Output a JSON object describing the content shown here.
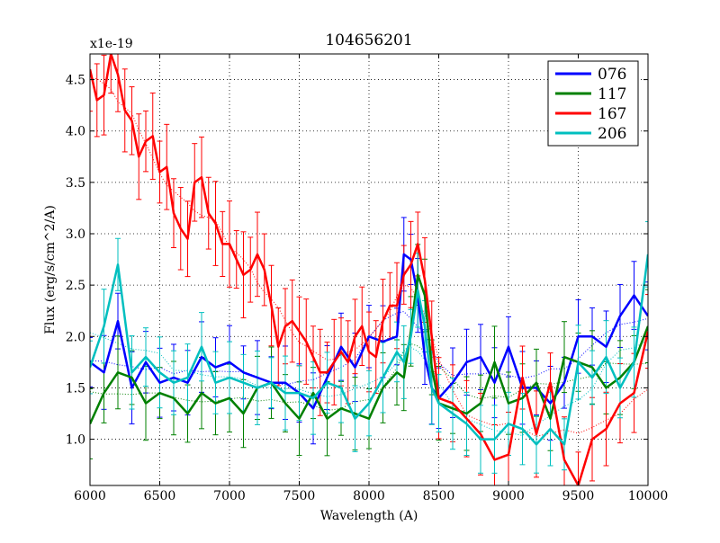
{
  "chart_data": {
    "type": "line",
    "title": "104656201",
    "xlabel": "Wavelength (A)",
    "ylabel": "Flux (erg/s/cm^2/A)",
    "y_scale_label": "x1e-19",
    "xlim": [
      6000,
      10000
    ],
    "ylim": [
      0.55,
      4.75
    ],
    "xticks": [
      6000,
      6500,
      7000,
      7500,
      8000,
      8500,
      9000,
      9500,
      10000
    ],
    "yticks": [
      1.0,
      1.5,
      2.0,
      2.5,
      3.0,
      3.5,
      4.0,
      4.5
    ],
    "ytick_labels": [
      "1.0",
      "1.5",
      "2.0",
      "2.5",
      "3.0",
      "3.5",
      "4.0",
      "4.5"
    ],
    "grid": true,
    "legend_position": "top-right",
    "series": [
      {
        "name": "076",
        "color": "#0000ff",
        "x": [
          6000,
          6100,
          6200,
          6300,
          6400,
          6500,
          6600,
          6700,
          6800,
          6900,
          7000,
          7100,
          7200,
          7300,
          7400,
          7500,
          7600,
          7700,
          7800,
          7900,
          8000,
          8100,
          8200,
          8250,
          8300,
          8350,
          8400,
          8450,
          8500,
          8600,
          8700,
          8800,
          8900,
          9000,
          9100,
          9200,
          9300,
          9400,
          9500,
          9600,
          9700,
          9800,
          9900,
          10000
        ],
        "y": [
          1.75,
          1.65,
          2.15,
          1.5,
          1.75,
          1.55,
          1.6,
          1.55,
          1.8,
          1.7,
          1.75,
          1.65,
          1.6,
          1.55,
          1.55,
          1.45,
          1.3,
          1.6,
          1.9,
          1.7,
          2.0,
          1.95,
          2.0,
          2.8,
          2.75,
          2.4,
          1.8,
          1.5,
          1.4,
          1.55,
          1.75,
          1.8,
          1.55,
          1.9,
          1.5,
          1.5,
          1.35,
          1.55,
          2.0,
          2.0,
          1.9,
          2.2,
          2.4,
          2.2
        ],
        "err": 0.3
      },
      {
        "name": "117",
        "color": "#008000",
        "x": [
          6000,
          6100,
          6200,
          6300,
          6400,
          6500,
          6600,
          6700,
          6800,
          6900,
          7000,
          7100,
          7200,
          7300,
          7400,
          7500,
          7600,
          7700,
          7800,
          7900,
          8000,
          8100,
          8200,
          8250,
          8300,
          8350,
          8400,
          8450,
          8500,
          8600,
          8700,
          8800,
          8900,
          9000,
          9100,
          9200,
          9300,
          9400,
          9500,
          9600,
          9700,
          9800,
          9900,
          10000
        ],
        "y": [
          1.15,
          1.45,
          1.65,
          1.6,
          1.35,
          1.45,
          1.4,
          1.25,
          1.45,
          1.35,
          1.4,
          1.25,
          1.5,
          1.55,
          1.35,
          1.2,
          1.45,
          1.2,
          1.3,
          1.25,
          1.2,
          1.5,
          1.65,
          1.6,
          2.05,
          2.6,
          2.4,
          1.7,
          1.35,
          1.3,
          1.25,
          1.35,
          1.75,
          1.35,
          1.4,
          1.55,
          1.2,
          1.8,
          1.75,
          1.7,
          1.5,
          1.6,
          1.75,
          2.1
        ],
        "err": 0.3
      },
      {
        "name": "167",
        "color": "#ff0000",
        "x": [
          6000,
          6050,
          6100,
          6150,
          6200,
          6250,
          6300,
          6350,
          6400,
          6450,
          6500,
          6550,
          6600,
          6650,
          6700,
          6750,
          6800,
          6850,
          6900,
          6950,
          7000,
          7050,
          7100,
          7150,
          7200,
          7250,
          7300,
          7350,
          7400,
          7450,
          7500,
          7550,
          7600,
          7650,
          7700,
          7750,
          7800,
          7850,
          7900,
          7950,
          8000,
          8050,
          8100,
          8150,
          8200,
          8250,
          8300,
          8350,
          8400,
          8450,
          8500,
          8600,
          8700,
          8800,
          8900,
          9000,
          9100,
          9200,
          9300,
          9400,
          9500,
          9600,
          9700,
          9800,
          9900,
          10000
        ],
        "y": [
          4.6,
          4.3,
          4.35,
          4.75,
          4.55,
          4.2,
          4.1,
          3.75,
          3.9,
          3.95,
          3.6,
          3.65,
          3.2,
          3.05,
          2.95,
          3.5,
          3.55,
          3.2,
          3.1,
          2.9,
          2.9,
          2.75,
          2.6,
          2.65,
          2.8,
          2.65,
          2.3,
          1.9,
          2.1,
          2.15,
          2.05,
          1.95,
          1.8,
          1.65,
          1.65,
          1.75,
          1.85,
          1.75,
          2.0,
          2.1,
          1.85,
          1.8,
          2.15,
          2.3,
          2.3,
          2.6,
          2.7,
          2.9,
          2.55,
          2.0,
          1.4,
          1.35,
          1.2,
          1.05,
          0.8,
          0.85,
          1.6,
          1.05,
          1.55,
          0.8,
          0.55,
          1.0,
          1.1,
          1.35,
          1.45,
          2.05
        ],
        "err": 0.35
      },
      {
        "name": "206",
        "color": "#00bfbf",
        "x": [
          6000,
          6100,
          6200,
          6300,
          6400,
          6500,
          6600,
          6700,
          6800,
          6900,
          7000,
          7100,
          7200,
          7300,
          7400,
          7500,
          7600,
          7700,
          7800,
          7900,
          8000,
          8100,
          8200,
          8250,
          8300,
          8350,
          8400,
          8450,
          8500,
          8600,
          8700,
          8800,
          8900,
          9000,
          9100,
          9200,
          9300,
          9400,
          9500,
          9600,
          9700,
          9800,
          9900,
          10000
        ],
        "y": [
          1.7,
          2.1,
          2.7,
          1.65,
          1.8,
          1.65,
          1.55,
          1.6,
          1.9,
          1.55,
          1.6,
          1.55,
          1.5,
          1.55,
          1.45,
          1.45,
          1.4,
          1.55,
          1.5,
          1.2,
          1.35,
          1.6,
          1.85,
          1.75,
          2.0,
          2.45,
          2.1,
          1.5,
          1.35,
          1.25,
          1.15,
          1.0,
          1.0,
          1.15,
          1.1,
          0.95,
          1.1,
          0.95,
          1.75,
          1.6,
          1.8,
          1.5,
          1.75,
          2.8
        ],
        "err": 0.3
      }
    ]
  }
}
